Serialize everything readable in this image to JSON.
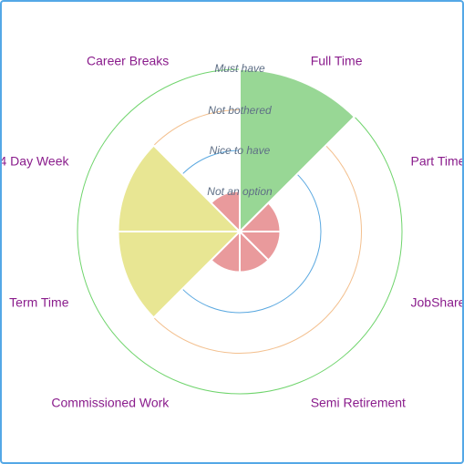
{
  "chart_data": {
    "type": "polar-area",
    "categories": [
      "Full Time",
      "Part Time",
      "JobShare",
      "Semi Retirement",
      "Commissioned Work",
      "Term Time",
      "4 Day Week",
      "Career Breaks"
    ],
    "ring_labels": [
      "Not an option",
      "Nice to have",
      "Not bothered",
      "Must have"
    ],
    "levels": [
      4,
      1,
      1,
      1,
      1,
      3,
      3,
      1
    ],
    "rmax": 4,
    "colors": {
      "level_fill": {
        "1": "#e99a9c",
        "3": "#e8e693",
        "4": "#98d795"
      },
      "ring_stroke": {
        "1": "#e8a070",
        "2": "#5aa8e0",
        "3": "#f3c08f",
        "4": "#6fd46c"
      },
      "label": "#8a1c8c",
      "ring_label": "#5f6f86",
      "frame": "#54a8e6"
    }
  }
}
